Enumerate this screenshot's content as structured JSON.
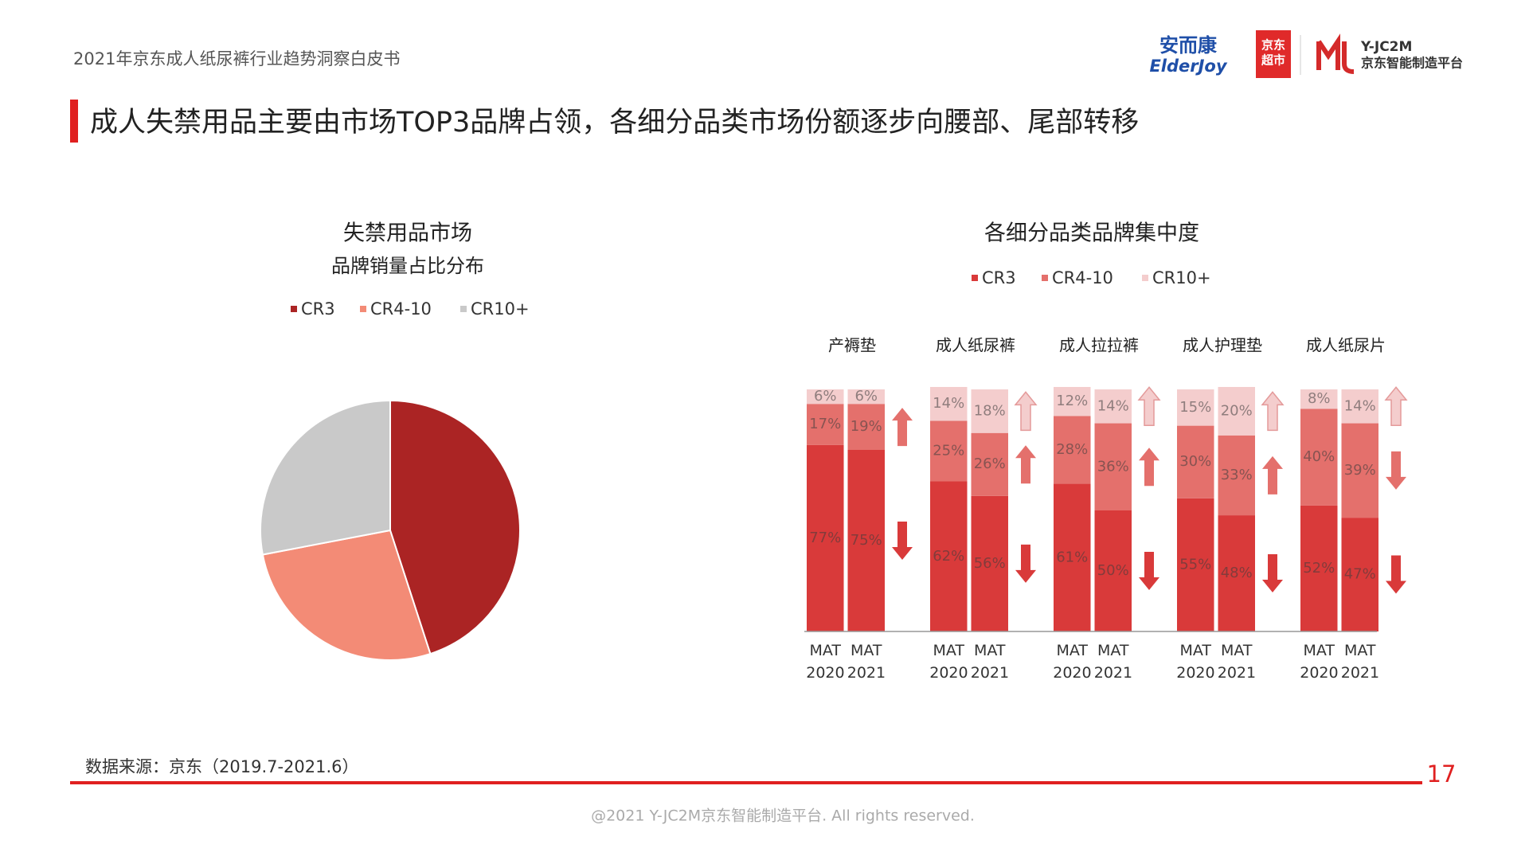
{
  "header": {
    "report_title": "2021年京东成人纸尿裤行业趋势洞察白皮书",
    "logos": {
      "elderjoy_cn": "安而康",
      "elderjoy_en": "ElderJoy",
      "jd_top": "京东",
      "jd_bottom": "超市",
      "platform_en": "Y-JC2M",
      "platform_cn": "京东智能制造平台"
    }
  },
  "slide_title": "成人失禁用品主要由市场TOP3品牌占领，各细分品类市场份额逐步向腰部、尾部转移",
  "chart_data": [
    {
      "type": "pie",
      "title": "失禁用品市场",
      "subtitle": "品牌销量占比分布",
      "categories": [
        "CR3",
        "CR4-10",
        "CR10+"
      ],
      "values": [
        45,
        27,
        28
      ],
      "colors": [
        "#ab2424",
        "#f38b76",
        "#c9c9c9"
      ]
    },
    {
      "type": "stacked_bar",
      "title": "各细分品类品牌集中度",
      "groups": [
        "产褥垫",
        "成人纸尿裤",
        "成人拉拉裤",
        "成人护理垫",
        "成人纸尿片"
      ],
      "categories": [
        "MAT 2020",
        "MAT 2021",
        "MAT 2020",
        "MAT 2021",
        "MAT 2020",
        "MAT 2021",
        "MAT 2020",
        "MAT 2021",
        "MAT 2020",
        "MAT 2021"
      ],
      "series": [
        {
          "name": "CR3",
          "color": "#d93a3a",
          "values": [
            77,
            75,
            62,
            56,
            61,
            50,
            55,
            48,
            52,
            47
          ],
          "value_labels": [
            "77%",
            "75%",
            "62%",
            "56%",
            "61%",
            "50%",
            "55%",
            "48%",
            "52%",
            "47%"
          ]
        },
        {
          "name": "CR4-10",
          "color": "#e4706c",
          "values": [
            17,
            19,
            25,
            26,
            28,
            36,
            30,
            33,
            40,
            39
          ],
          "value_labels": [
            "17%",
            "19%",
            "25%",
            "26%",
            "28%",
            "36%",
            "30%",
            "33%",
            "40%",
            "39%"
          ]
        },
        {
          "name": "CR10+",
          "color": "#f4cdcd",
          "values": [
            6,
            6,
            14,
            18,
            12,
            14,
            15,
            20,
            8,
            14
          ],
          "value_labels": [
            "6%",
            "6%",
            "14%",
            "18%",
            "12%",
            "14%",
            "15%",
            "20%",
            "8%",
            "14%"
          ]
        }
      ]
    }
  ],
  "source": "数据来源：京东（2019.7-2021.6）",
  "page_number": "17",
  "footer": "@2021 Y-JC2M京东智能制造平台. All rights reserved."
}
